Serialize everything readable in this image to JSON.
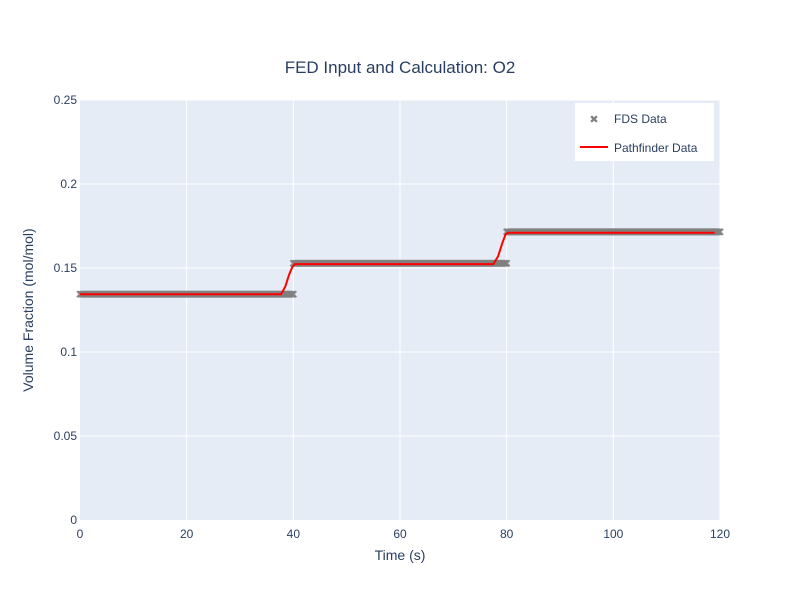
{
  "chart_data": {
    "type": "line",
    "title": "FED Input and Calculation: O2",
    "xlabel": "Time (s)",
    "ylabel": "Volume Fraction (mol/mol)",
    "xlim": [
      0,
      120
    ],
    "ylim": [
      0,
      0.25
    ],
    "x_ticks": [
      0,
      20,
      40,
      60,
      80,
      100,
      120
    ],
    "x_tick_labels": [
      "0",
      "20",
      "40",
      "60",
      "80",
      "100",
      "120"
    ],
    "y_ticks": [
      0,
      0.05,
      0.1,
      0.15,
      0.2,
      0.25
    ],
    "y_tick_labels": [
      "0",
      "0.05",
      "0.1",
      "0.15",
      "0.2",
      "0.25"
    ],
    "grid": true,
    "legend_position": "top-right",
    "colors": {
      "plot_background": "#e5ecf6",
      "grid": "#ffffff",
      "text": "#2a3f5f",
      "fds": "#808080",
      "pathfinder": "#ff0000"
    },
    "series": [
      {
        "name": "FDS Data",
        "style": "markers",
        "marker_symbol": "x",
        "segments": [
          {
            "x_start": 0,
            "x_end": 40,
            "y": 0.1344
          },
          {
            "x_start": 40,
            "x_end": 80,
            "y": 0.1528
          },
          {
            "x_start": 80,
            "x_end": 120,
            "y": 0.1715
          }
        ]
      },
      {
        "name": "Pathfinder Data",
        "style": "lines",
        "x": [
          0,
          37.7,
          38.5,
          39.2,
          39.8,
          40.3,
          77.5,
          78.4,
          79.2,
          79.8,
          80.3,
          119
        ],
        "y": [
          0.1344,
          0.1344,
          0.139,
          0.146,
          0.1505,
          0.1523,
          0.1523,
          0.157,
          0.165,
          0.17,
          0.171,
          0.171
        ]
      }
    ]
  }
}
